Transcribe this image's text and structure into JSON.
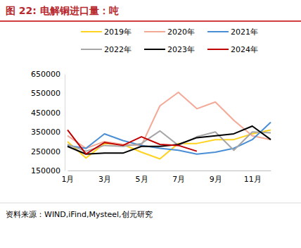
{
  "chart_data": {
    "type": "line",
    "title": "图 22:  电解铜进口量：吨",
    "source": "资料来源：WIND,iFind,Mysteel,创元研究",
    "categories": [
      "1月",
      null,
      "3月",
      null,
      "5月",
      null,
      "7月",
      null,
      "9月",
      null,
      "11月",
      null
    ],
    "ylim": [
      150000,
      650000
    ],
    "yticks": [
      150000,
      250000,
      350000,
      450000,
      550000,
      650000
    ],
    "grid": false,
    "legend": "top",
    "series": [
      {
        "name": "2019年",
        "color": "#ffd320",
        "values": [
          300000,
          215000,
          290000,
          285000,
          245000,
          210000,
          290000,
          290000,
          310000,
          310000,
          340000,
          360000
        ]
      },
      {
        "name": "2020年",
        "color": "#f4a896",
        "values": [
          330000,
          265000,
          300000,
          285000,
          280000,
          485000,
          555000,
          470000,
          505000,
          410000,
          330000,
          310000
        ]
      },
      {
        "name": "2021年",
        "color": "#4a8fd6",
        "values": [
          280000,
          265000,
          340000,
          305000,
          280000,
          265000,
          255000,
          235000,
          245000,
          265000,
          310000,
          400000
        ]
      },
      {
        "name": "2022年",
        "color": "#a6a6a6",
        "values": [
          285000,
          250000,
          280000,
          275000,
          290000,
          355000,
          280000,
          325000,
          350000,
          255000,
          350000,
          345000
        ]
      },
      {
        "name": "2023年",
        "color": "#000000",
        "values": [
          275000,
          235000,
          240000,
          240000,
          275000,
          275000,
          285000,
          320000,
          330000,
          340000,
          380000,
          310000
        ]
      },
      {
        "name": "2024年",
        "color": "#c00000",
        "values": [
          360000,
          235000,
          295000,
          280000,
          325000,
          285000,
          280000,
          250000,
          null,
          null,
          null,
          null
        ]
      }
    ]
  }
}
